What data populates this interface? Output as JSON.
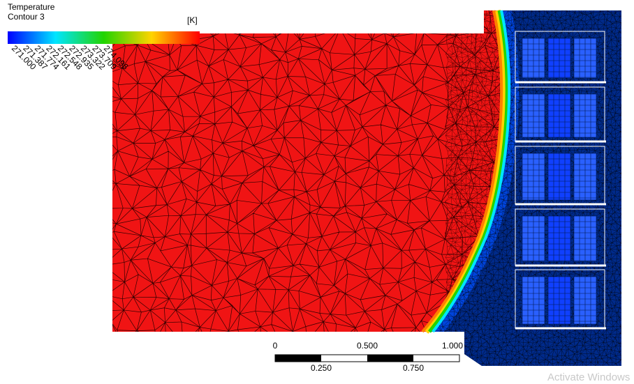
{
  "legend": {
    "title": "Temperature",
    "subtitle": "Contour 3",
    "unit": "[K]",
    "labels": [
      "271.000",
      "271.387",
      "271.774",
      "272.161",
      "272.548",
      "272.935",
      "273.322",
      "273.709",
      "274.096"
    ]
  },
  "scale_bar": {
    "top_labels": [
      "0",
      "0.500",
      "1.000"
    ],
    "bottom_labels": [
      "0.250",
      "0.750"
    ]
  },
  "watermark": "Activate Windows"
}
